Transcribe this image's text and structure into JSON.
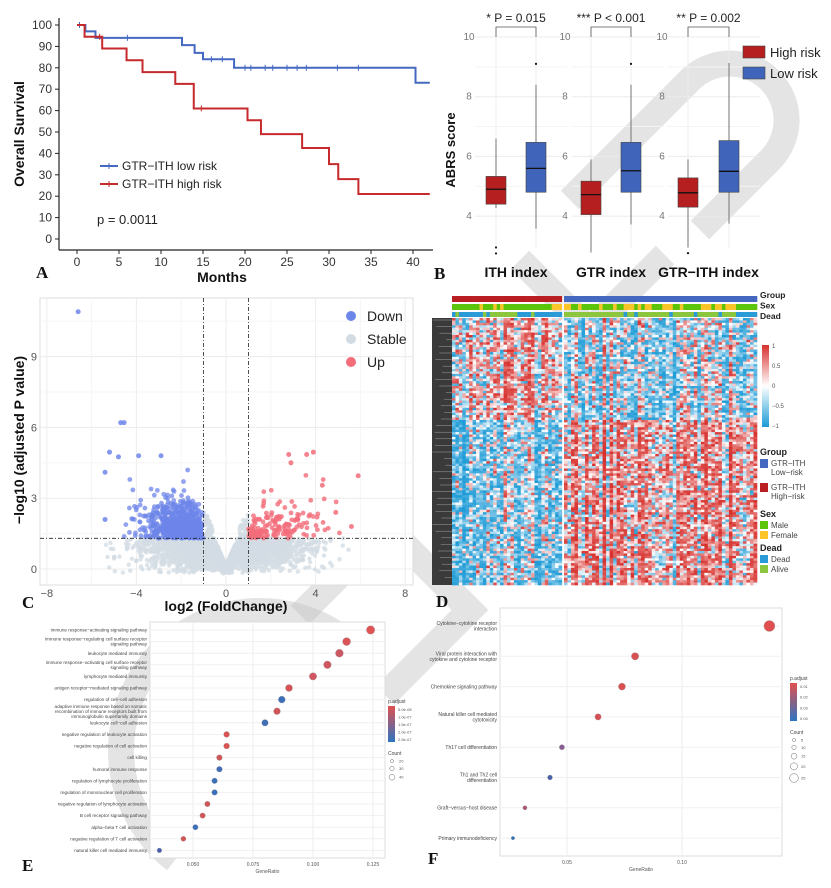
{
  "figure": {
    "watermark": "ACCEPTED",
    "panel_labels": [
      "A",
      "B",
      "C",
      "D",
      "E",
      "F"
    ]
  },
  "chart_data": [
    {
      "panel": "A",
      "type": "line",
      "subtype": "kaplan-meier",
      "xlabel": "Months",
      "ylabel": "Overall Survival",
      "xlim": [
        0,
        42
      ],
      "ylim": [
        0,
        100
      ],
      "xticks": [
        0,
        5,
        10,
        15,
        20,
        25,
        30,
        35,
        40
      ],
      "yticks": [
        0,
        10,
        20,
        30,
        40,
        50,
        60,
        70,
        80,
        90,
        100
      ],
      "annotation": "p = 0.0011",
      "legend_position": "bottom-left",
      "series": [
        {
          "name": "GTR−ITH low risk",
          "color": "#4569c1",
          "steps": [
            [
              0,
              100
            ],
            [
              1,
              97
            ],
            [
              2.2,
              94
            ],
            [
              12.5,
              90.6
            ],
            [
              14,
              87
            ],
            [
              15,
              84
            ],
            [
              18.7,
              80
            ],
            [
              40.3,
              73
            ]
          ],
          "end": 42,
          "censored": [
            0.3,
            6,
            16,
            17.3,
            20,
            20.7,
            22.4,
            23.3,
            25,
            26.2,
            27.3,
            31,
            33.5
          ]
        },
        {
          "name": "GTR−ITH high risk",
          "color": "#c62a2c",
          "steps": [
            [
              0,
              100
            ],
            [
              0.9,
              94.5
            ],
            [
              3,
              89
            ],
            [
              5.9,
              83.5
            ],
            [
              7.8,
              78
            ],
            [
              11.7,
              72.5
            ],
            [
              13.9,
              61
            ],
            [
              20.3,
              55.5
            ],
            [
              21.9,
              49
            ],
            [
              26.8,
              42.5
            ],
            [
              30,
              35
            ],
            [
              31.1,
              28
            ],
            [
              33.5,
              21
            ]
          ],
          "end": 42,
          "censored": [
            2.7,
            14.8
          ]
        }
      ]
    },
    {
      "panel": "B",
      "type": "box",
      "ylabel": "ABRS score",
      "ylim": [
        2.6,
        10.3
      ],
      "yticks": [
        4,
        6,
        8,
        10
      ],
      "categories": [
        "ITH index",
        "GTR index",
        "GTR−ITH index"
      ],
      "pvalues": [
        "* P = 0.015",
        "*** P < 0.001",
        "** P = 0.002"
      ],
      "legend_position": "top-right",
      "series": [
        {
          "name": "High risk",
          "color": "#b51f20",
          "boxes": [
            {
              "min": 4.27,
              "q1": 4.4,
              "median": 4.9,
              "q3": 5.33,
              "max": 6.6,
              "outliers": [
                2.95,
                2.75
              ]
            },
            {
              "min": 2.78,
              "q1": 4.05,
              "median": 4.72,
              "q3": 5.17,
              "max": 5.9,
              "outliers": []
            },
            {
              "min": 2.95,
              "q1": 4.3,
              "median": 4.78,
              "q3": 5.28,
              "max": 5.9,
              "outliers": [
                2.76
              ]
            }
          ]
        },
        {
          "name": "Low risk",
          "color": "#3f64b9",
          "boxes": [
            {
              "min": 3.58,
              "q1": 4.8,
              "median": 5.6,
              "q3": 6.47,
              "max": 8.4,
              "outliers": [
                9.1
              ]
            },
            {
              "min": 3.72,
              "q1": 4.8,
              "median": 5.52,
              "q3": 6.47,
              "max": 8.4,
              "outliers": [
                9.1
              ]
            },
            {
              "min": 3.75,
              "q1": 4.8,
              "median": 5.5,
              "q3": 6.53,
              "max": 9.13,
              "outliers": []
            }
          ]
        }
      ]
    },
    {
      "panel": "C",
      "type": "scatter",
      "subtype": "volcano",
      "xlabel": "log2 (FoldChange)",
      "ylabel": "−log10 (adjusted P value)",
      "xlim": [
        -8.3,
        8.3
      ],
      "ylim": [
        -0.7,
        11.5
      ],
      "xticks": [
        -8,
        -4,
        0,
        4,
        8
      ],
      "yticks": [
        0,
        3,
        6,
        9
      ],
      "thresholds": {
        "log2fc": [
          -1,
          1
        ],
        "neg_log10_p": 1.3
      },
      "grid": true,
      "legend_position": "top-right",
      "legend": [
        {
          "label": "Down",
          "color": "#6d86ea"
        },
        {
          "label": "Stable",
          "color": "#d3dce3"
        },
        {
          "label": "Up",
          "color": "#f36d7a"
        }
      ],
      "highlighted_points": [
        {
          "x": -6.6,
          "y": 10.9,
          "class": "Down"
        },
        {
          "x": -4.7,
          "y": 6.2,
          "class": "Down"
        },
        {
          "x": -4.55,
          "y": 6.2,
          "class": "Down"
        },
        {
          "x": -5.2,
          "y": 4.95,
          "class": "Down"
        },
        {
          "x": -4.8,
          "y": 4.75,
          "class": "Down"
        },
        {
          "x": -5.4,
          "y": 4.1,
          "class": "Down"
        },
        {
          "x": -5.4,
          "y": 2.1,
          "class": "Down"
        },
        {
          "x": -3.9,
          "y": 4.8,
          "class": "Down"
        },
        {
          "x": -2.9,
          "y": 4.8,
          "class": "Down"
        },
        {
          "x": 2.8,
          "y": 4.85,
          "class": "Up"
        },
        {
          "x": 3.6,
          "y": 4.85,
          "class": "Up"
        },
        {
          "x": 3.9,
          "y": 4.95,
          "class": "Up"
        },
        {
          "x": 2.9,
          "y": 4.5,
          "class": "Up"
        },
        {
          "x": 5.9,
          "y": 3.95,
          "class": "Up"
        },
        {
          "x": 5.6,
          "y": 1.8,
          "class": "Up"
        },
        {
          "x": 4.3,
          "y": 3.55,
          "class": "Up"
        },
        {
          "x": 4.9,
          "y": 2.4,
          "class": "Up"
        }
      ]
    },
    {
      "panel": "D",
      "type": "heatmap",
      "annotation_tracks": [
        "Group",
        "Sex",
        "Dead"
      ],
      "color_scale": {
        "ticks": [
          "1",
          "0.5",
          "0",
          "−0.5",
          "−1"
        ],
        "high": "#d7302c",
        "mid": "#ffffff",
        "low": "#1b9ad6"
      },
      "legends": [
        {
          "title": "Group",
          "items": [
            {
              "label": [
                "GTR−ITH",
                "Low−risk"
              ],
              "color": "#4467c0"
            },
            {
              "label": [
                "GTR−ITH",
                "High−risk"
              ],
              "color": "#b81e22"
            }
          ]
        },
        {
          "title": "Sex",
          "items": [
            {
              "label": [
                "Male"
              ],
              "color": "#5cc40a"
            },
            {
              "label": [
                "Female"
              ],
              "color": "#fbc52a"
            }
          ]
        },
        {
          "title": "Dead",
          "items": [
            {
              "label": [
                "Dead"
              ],
              "color": "#2a9bd6"
            },
            {
              "label": [
                "Alive"
              ],
              "color": "#8cc63f"
            }
          ]
        }
      ]
    },
    {
      "panel": "E",
      "type": "scatter",
      "subtype": "dotplot",
      "xlabel": "GeneRatio",
      "xlim": [
        0.032,
        0.128
      ],
      "xticks": [
        0.05,
        0.075,
        0.1,
        0.125
      ],
      "xtick_labels": [
        "0.050",
        "0.075",
        "0.100",
        "0.125"
      ],
      "color_legend": {
        "title": "p.adjust",
        "labels": [
          "5.0e-08",
          "1.0e-07",
          "1.5e-07",
          "2.0e-07",
          "2.5e-07"
        ]
      },
      "size_legend": {
        "title": "Count",
        "labels": [
          "20",
          "30",
          "40"
        ]
      },
      "terms": [
        {
          "label": "immune response−activating signaling pathway",
          "ratio": 0.124,
          "count": 41,
          "color": "#e05353"
        },
        {
          "label": "immune response−regulating cell surface receptor signaling pathway",
          "ratio": 0.114,
          "count": 38,
          "color": "#d95456"
        },
        {
          "label": "leukocyte mediated immunity",
          "ratio": 0.111,
          "count": 37,
          "color": "#cc5862"
        },
        {
          "label": "immune response−activating cell surface receptor signaling pathway",
          "ratio": 0.106,
          "count": 35,
          "color": "#d05660"
        },
        {
          "label": "lymphocyte mediated immunity",
          "ratio": 0.1,
          "count": 33,
          "color": "#cf5660"
        },
        {
          "label": "antigen receptor−mediated signaling pathway",
          "ratio": 0.09,
          "count": 30,
          "color": "#d55456"
        },
        {
          "label": "regulation of cell−cell adhesion",
          "ratio": 0.087,
          "count": 29,
          "color": "#3d6fb9"
        },
        {
          "label": "adaptive immune response based on somatic recombination of immune receptors built from immunoglobulin superfamily domains",
          "ratio": 0.085,
          "count": 28,
          "color": "#d15558"
        },
        {
          "label": "leukocyte cell−cell adhesion",
          "ratio": 0.08,
          "count": 26,
          "color": "#3f6db6"
        },
        {
          "label": "negative regulation of leukocyte activation",
          "ratio": 0.064,
          "count": 21,
          "color": "#db5252"
        },
        {
          "label": "negative regulation of cell activation",
          "ratio": 0.064,
          "count": 21,
          "color": "#db5252"
        },
        {
          "label": "cell killing",
          "ratio": 0.061,
          "count": 20,
          "color": "#cf5558"
        },
        {
          "label": "humoral immune response",
          "ratio": 0.061,
          "count": 20,
          "color": "#3f6db7"
        },
        {
          "label": "regulation of lymphocyte proliferation",
          "ratio": 0.059,
          "count": 19,
          "color": "#3a6fba"
        },
        {
          "label": "regulation of mononuclear cell proliferation",
          "ratio": 0.059,
          "count": 19,
          "color": "#3a6fba"
        },
        {
          "label": "negative regulation of lymphocyte activation",
          "ratio": 0.056,
          "count": 18,
          "color": "#cf5558"
        },
        {
          "label": "B cell receptor signaling pathway",
          "ratio": 0.054,
          "count": 18,
          "color": "#d05558"
        },
        {
          "label": "alpha−beta T cell activation",
          "ratio": 0.051,
          "count": 17,
          "color": "#3a6fba"
        },
        {
          "label": "negative regulation of T cell activation",
          "ratio": 0.046,
          "count": 15,
          "color": "#d25556"
        },
        {
          "label": "natural killer cell mediated immunity",
          "ratio": 0.036,
          "count": 12,
          "color": "#4a5fae"
        }
      ]
    },
    {
      "panel": "F",
      "type": "scatter",
      "subtype": "dotplot",
      "xlabel": "GeneRatio",
      "xlim": [
        0.02,
        0.144
      ],
      "xticks": [
        0.05,
        0.1
      ],
      "xtick_labels": [
        "0.05",
        "0.10"
      ],
      "color_legend": {
        "title": "p.adjust",
        "labels": [
          "0.01",
          "0.02",
          "0.03",
          "0.04"
        ]
      },
      "size_legend": {
        "title": "Count",
        "labels": [
          "5",
          "10",
          "15",
          "20",
          "25"
        ]
      },
      "terms": [
        {
          "label": "Cytokine−cytokine receptor interaction",
          "ratio": 0.138,
          "count": 24,
          "color": "#e05050"
        },
        {
          "label": "Viral protein interaction with cytokine and cytokine receptor",
          "ratio": 0.0796,
          "count": 14,
          "color": "#d85052"
        },
        {
          "label": "Chemokine signaling pathway",
          "ratio": 0.0739,
          "count": 13,
          "color": "#d85052"
        },
        {
          "label": "Natural killer cell mediated cytotoxicity",
          "ratio": 0.0635,
          "count": 11,
          "color": "#d55054"
        },
        {
          "label": "Th17 cell differentiation",
          "ratio": 0.0478,
          "count": 8,
          "color": "#8a5a92"
        },
        {
          "label": "Th1 and Th2 cell differentiation",
          "ratio": 0.0426,
          "count": 7,
          "color": "#4a62ac"
        },
        {
          "label": "Graft−versus−host disease",
          "ratio": 0.0317,
          "count": 5,
          "color": "#a5556f"
        },
        {
          "label": "Primary immunodeficiency",
          "ratio": 0.0265,
          "count": 3,
          "color": "#2f6fb9"
        }
      ]
    }
  ]
}
